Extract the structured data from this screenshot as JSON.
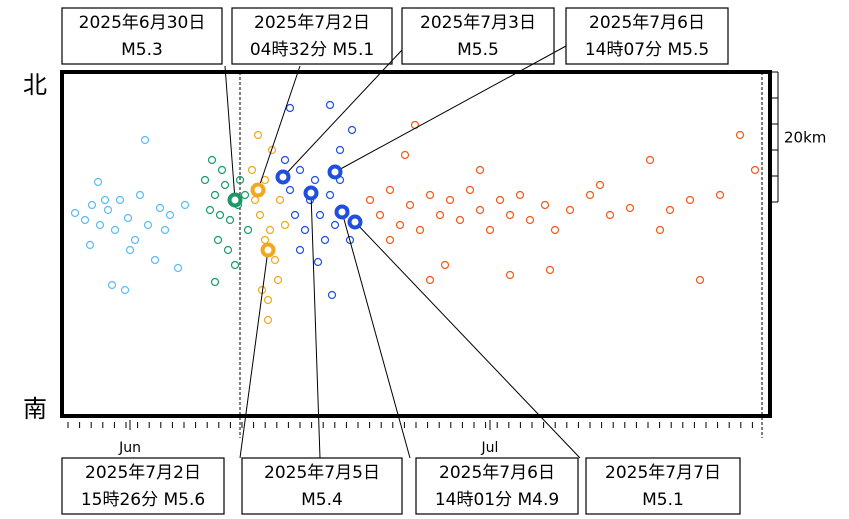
{
  "chart_data": {
    "type": "scatter",
    "xlim": [
      0,
      708
    ],
    "ylim": [
      0,
      344
    ],
    "xticks": [
      {
        "value": 68,
        "label": "Jun"
      },
      {
        "value": 428,
        "label": "Jul"
      }
    ],
    "y_top_label": "北",
    "y_bottom_label": "南",
    "scale_label": "20km",
    "vlines": [
      178,
      700
    ],
    "series": [
      {
        "color": "#5bbcf5",
        "x": [
          13,
          23,
          30,
          38,
          46,
          53,
          58,
          66,
          73,
          78,
          86,
          93,
          98,
          108,
          116,
          123,
          36,
          83,
          50,
          63,
          28,
          68,
          103,
          43
        ],
        "y": [
          203,
          196,
          211,
          191,
          206,
          186,
          216,
          198,
          176,
          221,
          191,
          156,
          208,
          201,
          148,
          211,
          234,
          276,
          131,
          126,
          171,
          166,
          186,
          216
        ]
      },
      {
        "color": "#1a9a6a",
        "x": [
          148,
          153,
          158,
          163,
          168,
          176,
          183,
          150,
          156,
          166,
          173,
          186,
          143,
          160,
          178,
          153
        ],
        "y": [
          206,
          221,
          201,
          231,
          196,
          211,
          221,
          256,
          176,
          166,
          151,
          186,
          236,
          246,
          236,
          134
        ]
      },
      {
        "color": "#f0a820",
        "x": [
          193,
          198,
          203,
          208,
          213,
          218,
          200,
          206,
          210,
          196,
          203,
          216,
          223,
          190,
          206
        ],
        "y": [
          216,
          201,
          236,
          186,
          156,
          216,
          126,
          96,
          266,
          281,
          176,
          136,
          191,
          246,
          116
        ]
      },
      {
        "color": "#1f4fe0",
        "x": [
          223,
          228,
          233,
          238,
          243,
          248,
          253,
          258,
          263,
          268,
          273,
          278,
          283,
          228,
          268,
          290,
          238,
          256,
          270,
          288,
          278
        ],
        "y": [
          256,
          226,
          201,
          246,
          186,
          216,
          236,
          201,
          176,
          221,
          191,
          236,
          206,
          308,
          311,
          286,
          166,
          154,
          121,
          176,
          266
        ]
      },
      {
        "color": "#f05a1a",
        "x": [
          308,
          318,
          328,
          338,
          348,
          358,
          368,
          378,
          388,
          398,
          408,
          418,
          428,
          438,
          448,
          458,
          468,
          483,
          493,
          508,
          528,
          548,
          568,
          588,
          608,
          628,
          638,
          658,
          678,
          693,
          343,
          353,
          383,
          418,
          448,
          488,
          538,
          598,
          368,
          328
        ],
        "y": [
          216,
          201,
          226,
          191,
          211,
          186,
          221,
          201,
          216,
          196,
          226,
          206,
          186,
          216,
          201,
          221,
          196,
          211,
          186,
          206,
          221,
          201,
          208,
          256,
          206,
          216,
          136,
          221,
          281,
          246,
          261,
          291,
          151,
          246,
          141,
          146,
          231,
          186,
          136,
          176
        ]
      }
    ],
    "main_shocks": {
      "x": [
        173,
        196,
        221,
        273,
        206,
        249,
        280,
        293
      ],
      "y": [
        216,
        226,
        239,
        244,
        166,
        223,
        204,
        194
      ],
      "colors": [
        "#1a9a6a",
        "#f0a820",
        "#1f4fe0",
        "#1f4fe0",
        "#f0a820",
        "#1f4fe0",
        "#1f4fe0",
        "#1f4fe0"
      ]
    },
    "annotations": [
      [
        "2025年6月30日",
        "M5.3"
      ],
      [
        "2025年7月2日",
        "04時32分 M5.1"
      ],
      [
        "2025年7月3日",
        "M5.5"
      ],
      [
        "2025年7月6日",
        "14時07分 M5.5"
      ],
      [
        "2025年7月2日",
        "15時26分 M5.6"
      ],
      [
        "2025年7月5日",
        "M5.4"
      ],
      [
        "2025年7月6日",
        "14時01分 M4.9"
      ],
      [
        "2025年7月7日",
        "M5.1"
      ]
    ]
  }
}
